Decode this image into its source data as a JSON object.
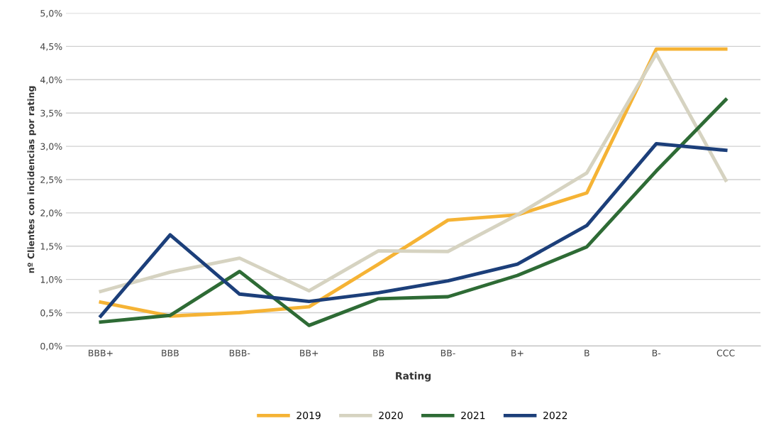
{
  "chart_data": {
    "type": "line",
    "xlabel": "Rating",
    "ylabel": "nº Clientes con incidencias por rating",
    "categories": [
      "BBB+",
      "BBB",
      "BBB-",
      "BB+",
      "BB",
      "BB-",
      "B+",
      "B",
      "B-",
      "CCC"
    ],
    "series": [
      {
        "name": "2019",
        "color": "#f5b335",
        "values": [
          0.66,
          0.45,
          0.5,
          0.59,
          1.23,
          1.89,
          1.97,
          2.3,
          4.46,
          4.46
        ]
      },
      {
        "name": "2020",
        "color": "#d6d3c1",
        "values": [
          0.82,
          1.11,
          1.32,
          0.83,
          1.43,
          1.42,
          1.97,
          2.6,
          4.39,
          2.49
        ]
      },
      {
        "name": "2021",
        "color": "#2e6b35",
        "values": [
          0.36,
          0.46,
          1.12,
          0.31,
          0.71,
          0.74,
          1.06,
          1.49,
          2.63,
          3.7
        ]
      },
      {
        "name": "2022",
        "color": "#1c3f7a",
        "values": [
          0.45,
          1.67,
          0.78,
          0.67,
          0.8,
          0.98,
          1.23,
          1.81,
          3.04,
          2.94
        ]
      }
    ],
    "ylim": [
      0,
      5
    ],
    "yticks": [
      {
        "value": 0,
        "label": "0,0%"
      },
      {
        "value": 0.5,
        "label": "0,5%"
      },
      {
        "value": 1,
        "label": "1,0%"
      },
      {
        "value": 1.5,
        "label": "1,5%"
      },
      {
        "value": 2,
        "label": "2,0%"
      },
      {
        "value": 2.5,
        "label": "2,5%"
      },
      {
        "value": 3,
        "label": "3,0%"
      },
      {
        "value": 3.5,
        "label": "3,5%"
      },
      {
        "value": 4,
        "label": "4,0%"
      },
      {
        "value": 4.5,
        "label": "4,5%"
      },
      {
        "value": 5,
        "label": "5,0%"
      }
    ],
    "grid": "y",
    "legend": "bottom",
    "marker": "none",
    "line_style": "solid"
  }
}
